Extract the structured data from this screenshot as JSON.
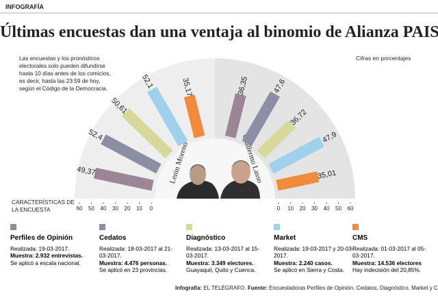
{
  "header": {
    "kicker": "INFOGRAFÍA",
    "title": "Últimas encuestas dan una ventaja al binomio de Alianza PAIS"
  },
  "note": "Las encuestas y los pronósticos electorales solo pueden difundirse hasta 10 días antes de los comicios, es decir, hasta las 23:59 de hoy, según el Código de la Democracia.",
  "units_note": "Cifras en porcentajes",
  "legend_title": "CARACTERÍSTICAS DE LA ENCUESTA",
  "footer": {
    "credit_label": "Infografía:",
    "credit": "EL TELÉGRAFO.",
    "source_label": "Fuente:",
    "source": "Encuestadoras Perfiles de Opinión, Cedatos, Diagnóstico, Market y CMS."
  },
  "chart_data": {
    "type": "radial-bar",
    "categories": [
      "Lenin Moreno",
      "Guillermo Lasso"
    ],
    "xlim": [
      0,
      60
    ],
    "xticks": [
      0,
      10,
      20,
      30,
      40,
      50,
      60
    ],
    "series": [
      {
        "name": "Perfiles de Opinión",
        "color": "#9c8595",
        "values": [
          49.37,
          36.35
        ],
        "value_labels": [
          "49,37",
          "36,35"
        ],
        "details": {
          "dates": "Realizada: 19-03-2017.",
          "sample": "Muestra: 2.932 entrevistas.",
          "scope": "Se aplicó a escala nacional."
        }
      },
      {
        "name": "Cedatos",
        "color": "#8c8fa3",
        "values": [
          52.4,
          47.6
        ],
        "value_labels": [
          "52,4",
          "47,6"
        ],
        "details": {
          "dates": "Realizada: 18-03-2017 al 21-03-2017.",
          "sample": "Muestra: 4.476 personas.",
          "scope": "Se aplicó en 23 provincias."
        }
      },
      {
        "name": "Diagnóstico",
        "color": "#d9d89c",
        "values": [
          50.61,
          36.72
        ],
        "value_labels": [
          "50,61",
          "36,72"
        ],
        "details": {
          "dates": "Realizada: 13-03-2017 al 15-03-2017.",
          "sample": "Muestra: 3.349 electores.",
          "scope": "Guayaquil, Quito y Cuenca."
        }
      },
      {
        "name": "Market",
        "color": "#9fd0ec",
        "values": [
          52.1,
          47.9
        ],
        "value_labels": [
          "52,1",
          "47,9"
        ],
        "details": {
          "dates": "Realizada: 19-03-2017 y 20-03-2017.",
          "sample": "Muestra: 2.240 casos.",
          "scope": "Se aplicó en Sierra y Costa."
        }
      },
      {
        "name": "CMS",
        "color": "#f08b3c",
        "values": [
          35.17,
          35.01
        ],
        "value_labels": [
          "35,17",
          "35,01"
        ],
        "details": {
          "dates": "Realizada: 01-03-2017 al 05-03-2017.",
          "sample": "Muestra: 14.536 electores",
          "scope": "Hay indecisión del 20,85%."
        }
      }
    ]
  }
}
